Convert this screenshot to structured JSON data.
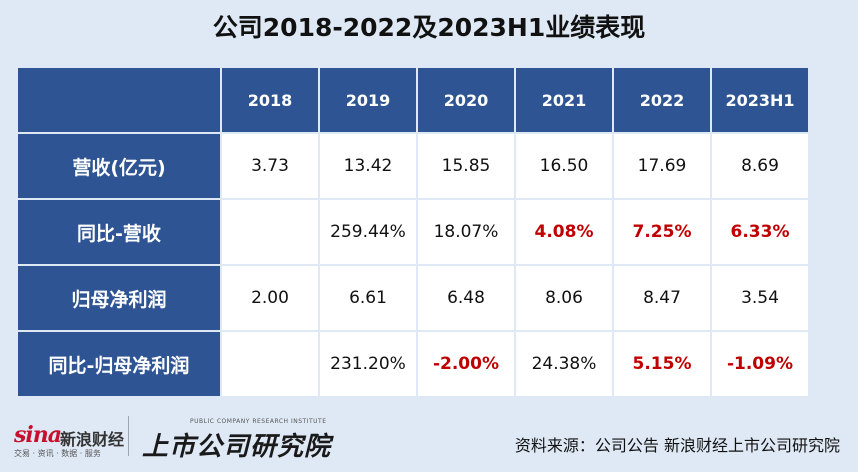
{
  "title": "公司2018-2022及2023H1业绩表现",
  "table": {
    "header": [
      "",
      "2018",
      "2019",
      "2020",
      "2021",
      "2022",
      "2023H1"
    ],
    "rows": [
      {
        "label": "营收(亿元)",
        "cells": [
          {
            "v": "3.73",
            "neg": false
          },
          {
            "v": "13.42",
            "neg": false
          },
          {
            "v": "15.85",
            "neg": false
          },
          {
            "v": "16.50",
            "neg": false
          },
          {
            "v": "17.69",
            "neg": false
          },
          {
            "v": "8.69",
            "neg": false
          }
        ]
      },
      {
        "label": "同比-营收",
        "cells": [
          {
            "v": "",
            "neg": false
          },
          {
            "v": "259.44%",
            "neg": false
          },
          {
            "v": "18.07%",
            "neg": false
          },
          {
            "v": "4.08%",
            "neg": true
          },
          {
            "v": "7.25%",
            "neg": true
          },
          {
            "v": "6.33%",
            "neg": true
          }
        ]
      },
      {
        "label": "归母净利润",
        "cells": [
          {
            "v": "2.00",
            "neg": false
          },
          {
            "v": "6.61",
            "neg": false
          },
          {
            "v": "6.48",
            "neg": false
          },
          {
            "v": "8.06",
            "neg": false
          },
          {
            "v": "8.47",
            "neg": false
          },
          {
            "v": "3.54",
            "neg": false
          }
        ]
      },
      {
        "label": "同比-归母净利润",
        "cells": [
          {
            "v": "",
            "neg": false
          },
          {
            "v": "231.20%",
            "neg": false
          },
          {
            "v": "-2.00%",
            "neg": true
          },
          {
            "v": "24.38%",
            "neg": false
          },
          {
            "v": "5.15%",
            "neg": true
          },
          {
            "v": "-1.09%",
            "neg": true
          }
        ]
      }
    ]
  },
  "footer": {
    "sina_mark": "sina",
    "sina_cn": "新浪财经",
    "sina_sub": "交易 · 资讯 · 数据 · 服务",
    "ssyj_en": "PUBLIC COMPANY RESEARCH INSTITUTE",
    "ssyj_cn": "上市公司研究院",
    "source": "资料来源：公司公告 新浪财经上市公司研究院"
  },
  "colors": {
    "header_bg": "#2e5494",
    "highlight": "#c00000",
    "page_bg": "#dfe9f5"
  }
}
